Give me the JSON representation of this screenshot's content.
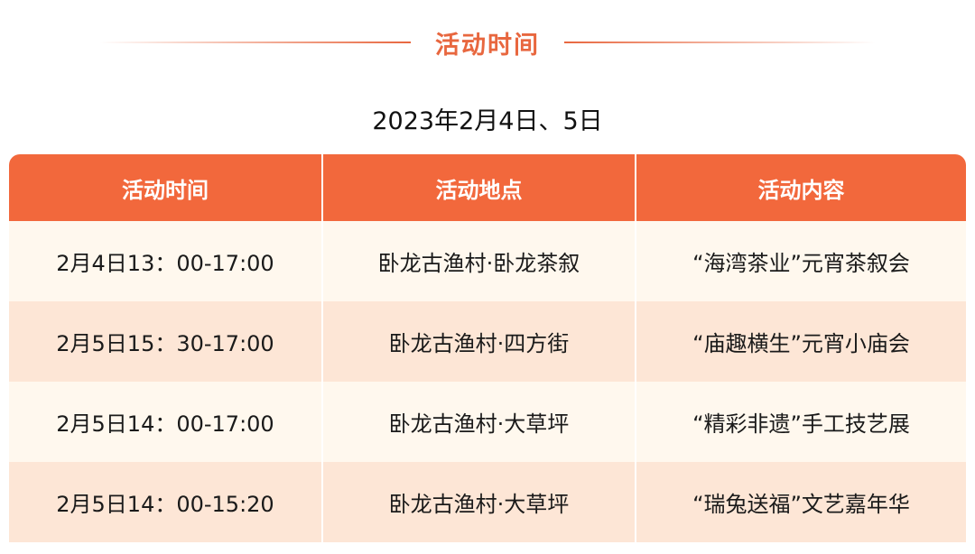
{
  "section_title": "活动时间",
  "date": "2023年2月4日、5日",
  "colors": {
    "accent": "#f2683c",
    "title": "#e8673f",
    "row_light": "#fff8ee",
    "row_dark": "#fde6d6"
  },
  "table": {
    "headers": [
      "活动时间",
      "活动地点",
      "活动内容"
    ],
    "rows": [
      [
        "2月4日13：00-17:00",
        "卧龙古渔村·卧龙茶叙",
        "“海湾茶业”元宵茶叙会"
      ],
      [
        "2月5日15：30-17:00",
        "卧龙古渔村·四方街",
        "“庙趣横生”元宵小庙会"
      ],
      [
        "2月5日14：00-17:00",
        "卧龙古渔村·大草坪",
        "“精彩非遗”手工技艺展"
      ],
      [
        "2月5日14：00-15:20",
        "卧龙古渔村·大草坪",
        "“瑞兔送福”文艺嘉年华"
      ]
    ]
  }
}
